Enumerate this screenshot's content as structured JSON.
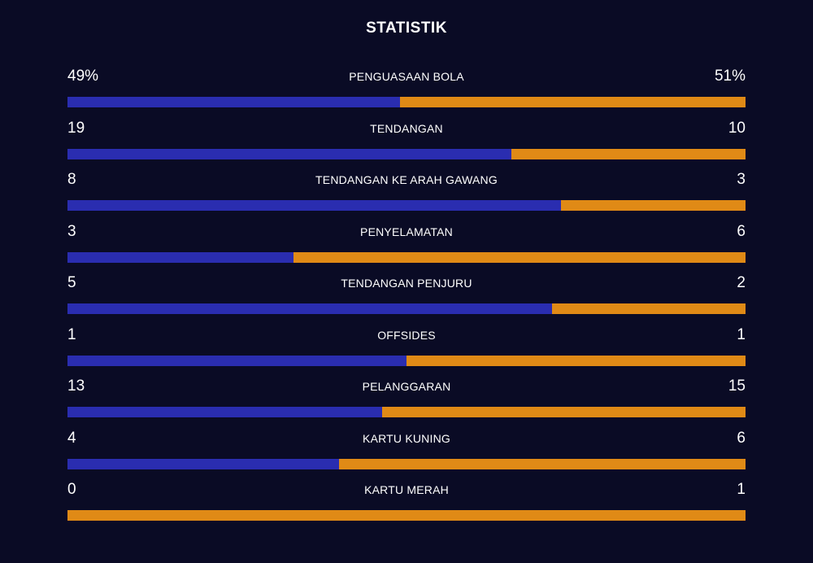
{
  "title": "STATISTIK",
  "colors": {
    "background": "#0a0b25",
    "home": "#2a2db0",
    "away": "#e08a16"
  },
  "chart_data": {
    "type": "bar",
    "orientation": "horizontal-stacked",
    "title": "STATISTIK",
    "categories": [
      "PENGUASAAN BOLA",
      "TENDANGAN",
      "TENDANGAN KE ARAH GAWANG",
      "PENYELAMATAN",
      "TENDANGAN PENJURU",
      "OFFSIDES",
      "PELANGGARAN",
      "KARTU KUNING",
      "KARTU MERAH"
    ],
    "series": [
      {
        "values": [
          49,
          19,
          8,
          3,
          5,
          1,
          13,
          4,
          0
        ]
      },
      {
        "values": [
          51,
          10,
          3,
          6,
          2,
          1,
          15,
          6,
          1
        ]
      }
    ],
    "value_labels_home": [
      "49%",
      "19",
      "8",
      "3",
      "5",
      "1",
      "13",
      "4",
      "0"
    ],
    "value_labels_away": [
      "51%",
      "10",
      "3",
      "6",
      "2",
      "1",
      "15",
      "6",
      "1"
    ]
  }
}
